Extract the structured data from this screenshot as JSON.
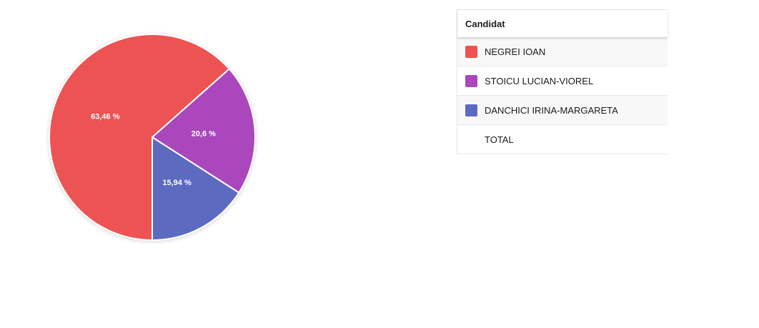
{
  "chart_data": {
    "type": "pie",
    "slices": [
      {
        "name": "NEGREI IOAN",
        "value": 63.46,
        "label": "63,46 %",
        "color": "#ed5353"
      },
      {
        "name": "STOICU LUCIAN-VIOREL",
        "value": 20.6,
        "label": "20,6 %",
        "color": "#aa47bc"
      },
      {
        "name": "DANCHICI IRINA-MARGARETA",
        "value": 15.94,
        "label": "15,94 %",
        "color": "#5c6bc0"
      }
    ]
  },
  "legend": {
    "header": "Candidat",
    "rows": [
      {
        "label": "NEGREI IOAN",
        "color": "#ed5353"
      },
      {
        "label": "STOICU LUCIAN-VIOREL",
        "color": "#aa47bc"
      },
      {
        "label": "DANCHICI IRINA-MARGARETA",
        "color": "#5c6bc0"
      },
      {
        "label": "TOTAL",
        "color": ""
      }
    ]
  }
}
